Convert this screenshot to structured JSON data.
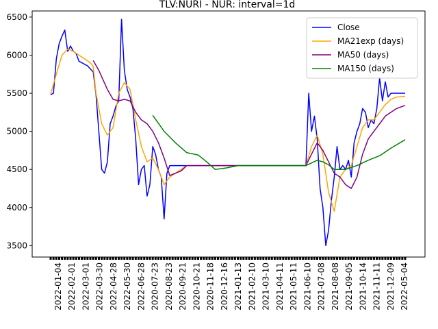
{
  "chart_data": {
    "type": "line",
    "title": "TLV:NURI - NUR: interval=1d",
    "xlabel": "",
    "ylabel": "",
    "ylim": [
      3350,
      6580
    ],
    "yticks": [
      3500,
      4000,
      4500,
      5000,
      5500,
      6000,
      6500
    ],
    "xtick_labels": [
      "2022-01-04",
      "2022-02-01",
      "2022-03-01",
      "2022-03-30",
      "2022-04-28",
      "2022-05-30",
      "2022-06-28",
      "2020-07-23",
      "2020-08-23",
      "2020-09-21",
      "2020-10-21",
      "2020-11-18",
      "2020-12-16",
      "2021-01-13",
      "2021-02-10",
      "2021-03-10",
      "2021-04-11",
      "2021-05-11",
      "2021-06-10",
      "2021-07-08",
      "2021-08-08",
      "2021-09-05",
      "2021-10-14",
      "2021-11-11",
      "2021-12-09",
      "2022-05-04"
    ],
    "legend": {
      "position": "top-right"
    },
    "grid": false,
    "series": [
      {
        "name": "Close",
        "color": "#0000ff",
        "points": [
          [
            0,
            5480
          ],
          [
            1,
            5500
          ],
          [
            2,
            5950
          ],
          [
            3,
            6150
          ],
          [
            4,
            6250
          ],
          [
            5,
            6330
          ],
          [
            6,
            6050
          ],
          [
            7,
            6120
          ],
          [
            8,
            6050
          ],
          [
            9,
            6020
          ],
          [
            10,
            5920
          ],
          [
            11,
            5900
          ],
          [
            12,
            5880
          ],
          [
            13,
            5860
          ],
          [
            14,
            5820
          ],
          [
            15,
            5780
          ],
          [
            16,
            5480
          ],
          [
            17,
            5000
          ],
          [
            18,
            4500
          ],
          [
            19,
            4450
          ],
          [
            20,
            4600
          ],
          [
            21,
            5100
          ],
          [
            22,
            5200
          ],
          [
            23,
            5330
          ],
          [
            24,
            5400
          ],
          [
            25,
            6470
          ],
          [
            26,
            5800
          ],
          [
            27,
            5550
          ],
          [
            28,
            5450
          ],
          [
            29,
            5300
          ],
          [
            30,
            4900
          ],
          [
            31,
            4300
          ],
          [
            32,
            4500
          ],
          [
            33,
            4550
          ],
          [
            34,
            4150
          ],
          [
            35,
            4300
          ],
          [
            36,
            4800
          ],
          [
            37,
            4700
          ],
          [
            38,
            4500
          ],
          [
            39,
            4400
          ],
          [
            40,
            3850
          ],
          [
            41,
            4450
          ],
          [
            42,
            4550
          ],
          [
            43,
            4550
          ],
          [
            44,
            4550
          ],
          [
            45,
            4550
          ],
          [
            46,
            4550
          ],
          [
            47,
            4550
          ],
          [
            48,
            4550
          ],
          [
            49,
            4550
          ],
          [
            50,
            4550
          ],
          [
            51,
            4550
          ],
          [
            52,
            4550
          ],
          [
            53,
            4550
          ],
          [
            54,
            4550
          ],
          [
            55,
            4550
          ],
          [
            56,
            4550
          ],
          [
            57,
            4550
          ],
          [
            58,
            4550
          ],
          [
            59,
            4550
          ],
          [
            60,
            4550
          ],
          [
            61,
            4550
          ],
          [
            62,
            4550
          ],
          [
            63,
            4550
          ],
          [
            64,
            4550
          ],
          [
            65,
            4550
          ],
          [
            66,
            4550
          ],
          [
            67,
            4550
          ],
          [
            68,
            4550
          ],
          [
            69,
            4550
          ],
          [
            70,
            4550
          ],
          [
            71,
            4550
          ],
          [
            72,
            4550
          ],
          [
            73,
            4550
          ],
          [
            74,
            4550
          ],
          [
            75,
            4550
          ],
          [
            76,
            4550
          ],
          [
            77,
            4550
          ],
          [
            78,
            4550
          ],
          [
            79,
            4550
          ],
          [
            80,
            4550
          ],
          [
            81,
            4550
          ],
          [
            82,
            4550
          ],
          [
            83,
            4550
          ],
          [
            84,
            4550
          ],
          [
            85,
            4550
          ],
          [
            86,
            4550
          ],
          [
            87,
            4550
          ],
          [
            88,
            4550
          ],
          [
            89,
            4550
          ],
          [
            90,
            4550
          ],
          [
            91,
            5500
          ],
          [
            92,
            5000
          ],
          [
            93,
            5200
          ],
          [
            94,
            4900
          ],
          [
            95,
            4250
          ],
          [
            96,
            4000
          ],
          [
            97,
            3500
          ],
          [
            98,
            3700
          ],
          [
            99,
            4100
          ],
          [
            100,
            4400
          ],
          [
            101,
            4800
          ],
          [
            102,
            4500
          ],
          [
            103,
            4550
          ],
          [
            104,
            4500
          ],
          [
            105,
            4620
          ],
          [
            106,
            4400
          ],
          [
            107,
            4850
          ],
          [
            108,
            5000
          ],
          [
            109,
            5100
          ],
          [
            110,
            5300
          ],
          [
            111,
            5250
          ],
          [
            112,
            5050
          ],
          [
            113,
            5150
          ],
          [
            114,
            5100
          ],
          [
            115,
            5300
          ],
          [
            116,
            5700
          ],
          [
            117,
            5400
          ],
          [
            118,
            5650
          ],
          [
            119,
            5450
          ],
          [
            120,
            5500
          ],
          [
            121,
            5500
          ],
          [
            122,
            5500
          ],
          [
            123,
            5500
          ],
          [
            124,
            5500
          ],
          [
            125,
            5500
          ]
        ]
      },
      {
        "name": "MA21exp (days)",
        "color": "#ffa500",
        "points": [
          [
            0,
            5490
          ],
          [
            2,
            5750
          ],
          [
            4,
            6000
          ],
          [
            6,
            6080
          ],
          [
            8,
            6050
          ],
          [
            10,
            6000
          ],
          [
            12,
            5950
          ],
          [
            14,
            5900
          ],
          [
            15,
            5850
          ],
          [
            16,
            5500
          ],
          [
            18,
            5100
          ],
          [
            20,
            4950
          ],
          [
            22,
            5050
          ],
          [
            24,
            5500
          ],
          [
            26,
            5640
          ],
          [
            28,
            5550
          ],
          [
            30,
            5150
          ],
          [
            32,
            4800
          ],
          [
            34,
            4600
          ],
          [
            36,
            4650
          ],
          [
            38,
            4500
          ],
          [
            40,
            4300
          ],
          [
            42,
            4400
          ],
          [
            44,
            4450
          ],
          [
            46,
            4500
          ],
          [
            48,
            4550
          ],
          [
            60,
            4550
          ],
          [
            90,
            4550
          ],
          [
            92,
            4800
          ],
          [
            94,
            4950
          ],
          [
            96,
            4700
          ],
          [
            98,
            4200
          ],
          [
            100,
            3950
          ],
          [
            102,
            4400
          ],
          [
            104,
            4500
          ],
          [
            106,
            4550
          ],
          [
            108,
            4800
          ],
          [
            110,
            5050
          ],
          [
            112,
            5150
          ],
          [
            114,
            5150
          ],
          [
            116,
            5250
          ],
          [
            118,
            5350
          ],
          [
            120,
            5420
          ],
          [
            122,
            5450
          ],
          [
            125,
            5460
          ]
        ]
      },
      {
        "name": "MA50 (days)",
        "color": "#800080",
        "points": [
          [
            15,
            5930
          ],
          [
            17,
            5800
          ],
          [
            20,
            5550
          ],
          [
            22,
            5420
          ],
          [
            24,
            5400
          ],
          [
            26,
            5420
          ],
          [
            28,
            5400
          ],
          [
            30,
            5250
          ],
          [
            32,
            5150
          ],
          [
            34,
            5100
          ],
          [
            36,
            5000
          ],
          [
            38,
            4850
          ],
          [
            40,
            4650
          ],
          [
            42,
            4420
          ],
          [
            44,
            4450
          ],
          [
            46,
            4480
          ],
          [
            48,
            4550
          ],
          [
            90,
            4550
          ],
          [
            92,
            4700
          ],
          [
            94,
            4850
          ],
          [
            96,
            4750
          ],
          [
            98,
            4600
          ],
          [
            100,
            4450
          ],
          [
            102,
            4400
          ],
          [
            104,
            4300
          ],
          [
            106,
            4250
          ],
          [
            108,
            4400
          ],
          [
            110,
            4700
          ],
          [
            112,
            4900
          ],
          [
            114,
            5000
          ],
          [
            116,
            5100
          ],
          [
            118,
            5200
          ],
          [
            120,
            5250
          ],
          [
            122,
            5300
          ],
          [
            125,
            5340
          ]
        ]
      },
      {
        "name": "MA150 (days)",
        "color": "#008000",
        "points": [
          [
            36,
            5210
          ],
          [
            40,
            5000
          ],
          [
            44,
            4850
          ],
          [
            48,
            4720
          ],
          [
            52,
            4690
          ],
          [
            55,
            4600
          ],
          [
            58,
            4500
          ],
          [
            62,
            4520
          ],
          [
            66,
            4550
          ],
          [
            90,
            4550
          ],
          [
            94,
            4620
          ],
          [
            96,
            4600
          ],
          [
            98,
            4560
          ],
          [
            100,
            4500
          ],
          [
            104,
            4500
          ],
          [
            108,
            4550
          ],
          [
            112,
            4620
          ],
          [
            116,
            4680
          ],
          [
            120,
            4780
          ],
          [
            125,
            4890
          ]
        ]
      }
    ]
  }
}
